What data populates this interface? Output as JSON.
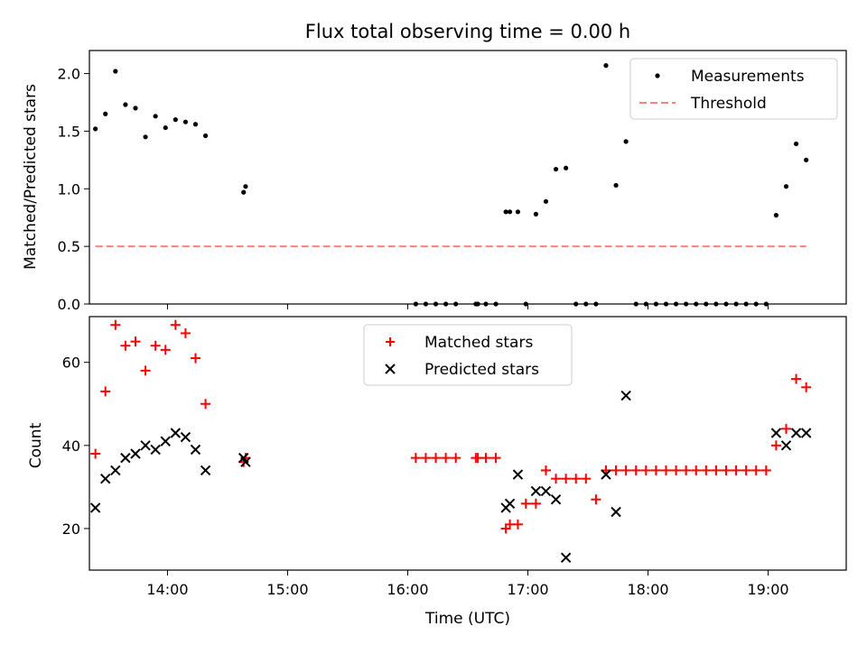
{
  "colors": {
    "measurement": "#000000",
    "threshold": "#ff8080",
    "matched": "#ff0000",
    "predicted": "#000000",
    "legend_border": "#cccccc"
  },
  "chart_data": [
    {
      "type": "scatter",
      "title": "Flux total observing time = 0.00 h",
      "xlabel": "",
      "ylabel": "Matched/Predicted stars",
      "xlim": [
        "13:21",
        "19:39"
      ],
      "ylim": [
        0,
        2.2
      ],
      "y_ticks": [
        "0.0",
        "0.5",
        "1.0",
        "1.5",
        "2.0"
      ],
      "x_tick_positions": [
        "14:00",
        "15:00",
        "16:00",
        "17:00",
        "18:00",
        "19:00"
      ],
      "x_tick_labels_shown": false,
      "legend_position": "upper right",
      "legend": [
        "Measurements",
        "Threshold"
      ],
      "series": [
        {
          "name": "Measurements",
          "marker": "dot",
          "x": [
            "13:24",
            "13:29",
            "13:34",
            "13:39",
            "13:44",
            "13:49",
            "13:54",
            "13:59",
            "14:04",
            "14:09",
            "14:14",
            "14:19",
            "14:38",
            "14:39",
            "16:04",
            "16:09",
            "16:14",
            "16:19",
            "16:24",
            "16:34",
            "16:35",
            "16:39",
            "16:44",
            "16:49",
            "16:51",
            "16:55",
            "16:59",
            "17:04",
            "17:09",
            "17:14",
            "17:19",
            "17:24",
            "17:29",
            "17:34",
            "17:39",
            "17:44",
            "17:49",
            "17:54",
            "17:59",
            "18:04",
            "18:09",
            "18:14",
            "18:19",
            "18:24",
            "18:29",
            "18:34",
            "18:39",
            "18:44",
            "18:49",
            "18:54",
            "18:59",
            "19:04",
            "19:09",
            "19:14",
            "19:19"
          ],
          "y": [
            1.52,
            1.65,
            2.02,
            1.73,
            1.7,
            1.45,
            1.63,
            1.53,
            1.6,
            1.58,
            1.56,
            1.46,
            0.97,
            1.02,
            0,
            0,
            0,
            0,
            0,
            0,
            0,
            0,
            0,
            0.8,
            0.8,
            0.8,
            0,
            0.78,
            0.89,
            1.17,
            1.18,
            0,
            0,
            0,
            2.07,
            1.03,
            1.41,
            0,
            0,
            0,
            0,
            0,
            0,
            0,
            0,
            0,
            0,
            0,
            0,
            0,
            0,
            0.77,
            1.02,
            1.39,
            1.25
          ]
        },
        {
          "name": "Threshold",
          "style": "dashed",
          "x": [
            "13:24",
            "19:19"
          ],
          "y": [
            0.5,
            0.5
          ]
        }
      ]
    },
    {
      "type": "scatter",
      "title": "",
      "xlabel": "Time (UTC)",
      "ylabel": "Count",
      "xlim": [
        "13:21",
        "19:39"
      ],
      "ylim": [
        10,
        71
      ],
      "y_ticks": [
        "20",
        "40",
        "60"
      ],
      "x_ticks": [
        "14:00",
        "15:00",
        "16:00",
        "17:00",
        "18:00",
        "19:00"
      ],
      "legend_position": "upper center",
      "legend": [
        "Matched stars",
        "Predicted stars"
      ],
      "series": [
        {
          "name": "Matched stars",
          "marker": "plus",
          "x": [
            "13:24",
            "13:29",
            "13:34",
            "13:39",
            "13:44",
            "13:49",
            "13:54",
            "13:59",
            "14:04",
            "14:09",
            "14:14",
            "14:19",
            "14:38",
            "14:39",
            "16:04",
            "16:09",
            "16:14",
            "16:19",
            "16:24",
            "16:34",
            "16:35",
            "16:39",
            "16:44",
            "16:49",
            "16:51",
            "16:55",
            "16:59",
            "17:04",
            "17:09",
            "17:14",
            "17:19",
            "17:24",
            "17:29",
            "17:34",
            "17:39",
            "17:44",
            "17:49",
            "17:54",
            "17:59",
            "18:04",
            "18:09",
            "18:14",
            "18:19",
            "18:24",
            "18:29",
            "18:34",
            "18:39",
            "18:44",
            "18:49",
            "18:54",
            "18:59",
            "19:04",
            "19:09",
            "19:14",
            "19:19"
          ],
          "y": [
            38,
            53,
            69,
            64,
            65,
            58,
            64,
            63,
            69,
            67,
            61,
            50,
            36,
            37,
            37,
            37,
            37,
            37,
            37,
            37,
            37,
            37,
            37,
            20,
            21,
            21,
            26,
            26,
            34,
            32,
            32,
            32,
            32,
            27,
            34,
            34,
            34,
            34,
            34,
            34,
            34,
            34,
            34,
            34,
            34,
            34,
            34,
            34,
            34,
            34,
            34,
            40,
            44,
            56,
            54
          ]
        },
        {
          "name": "Predicted stars",
          "marker": "x",
          "x": [
            "13:24",
            "13:29",
            "13:34",
            "13:39",
            "13:44",
            "13:49",
            "13:54",
            "13:59",
            "14:04",
            "14:09",
            "14:14",
            "14:19",
            "14:38",
            "14:39",
            "16:49",
            "16:51",
            "16:55",
            "17:04",
            "17:09",
            "17:14",
            "17:19",
            "17:39",
            "17:44",
            "17:49",
            "19:04",
            "19:09",
            "19:14",
            "19:19"
          ],
          "y": [
            25,
            32,
            34,
            37,
            38,
            40,
            39,
            41,
            43,
            42,
            39,
            34,
            37,
            36,
            25,
            26,
            33,
            29,
            29,
            27,
            13,
            33,
            24,
            52,
            43,
            40,
            43,
            43
          ]
        }
      ]
    }
  ]
}
